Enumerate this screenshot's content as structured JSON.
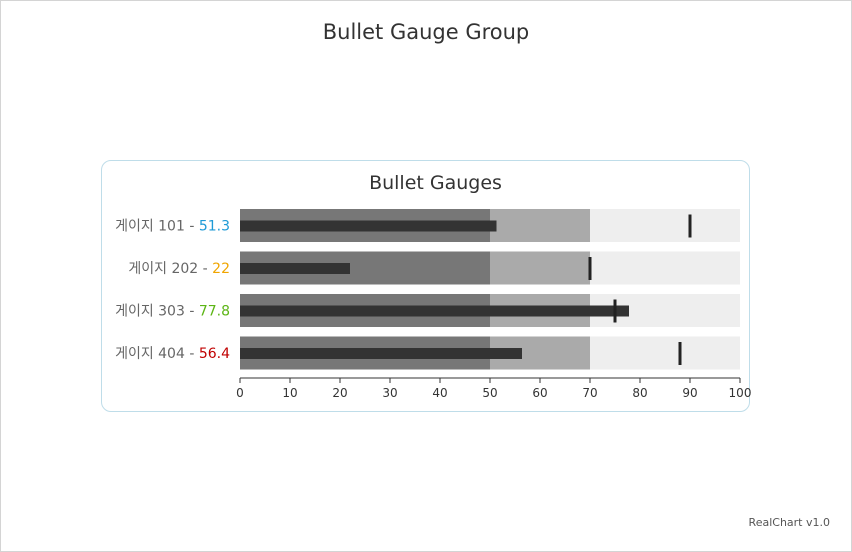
{
  "title": "Bullet Gauge Group",
  "credits": "RealChart v1.0",
  "chart_data": {
    "type": "bullet",
    "title": "Bullet Gauges",
    "xlim": [
      0,
      100
    ],
    "ticks": [
      0,
      10,
      20,
      30,
      40,
      50,
      60,
      70,
      80,
      90,
      100
    ],
    "bands": [
      {
        "from": 0,
        "to": 50,
        "color": "#777777"
      },
      {
        "from": 50,
        "to": 70,
        "color": "#aaaaaa"
      },
      {
        "from": 70,
        "to": 100,
        "color": "#eeeeee"
      }
    ],
    "bar_color": "#333333",
    "gauges": [
      {
        "name": "게이지 101",
        "value": 51.3,
        "target": 90,
        "value_color": "#1e9ad6"
      },
      {
        "name": "게이지 202",
        "value": 22,
        "target": 70,
        "value_color": "#f0a500"
      },
      {
        "name": "게이지 303",
        "value": 77.8,
        "target": 75,
        "value_color": "#5cb515"
      },
      {
        "name": "게이지 404",
        "value": 56.4,
        "target": 88,
        "value_color": "#c00000"
      }
    ]
  }
}
